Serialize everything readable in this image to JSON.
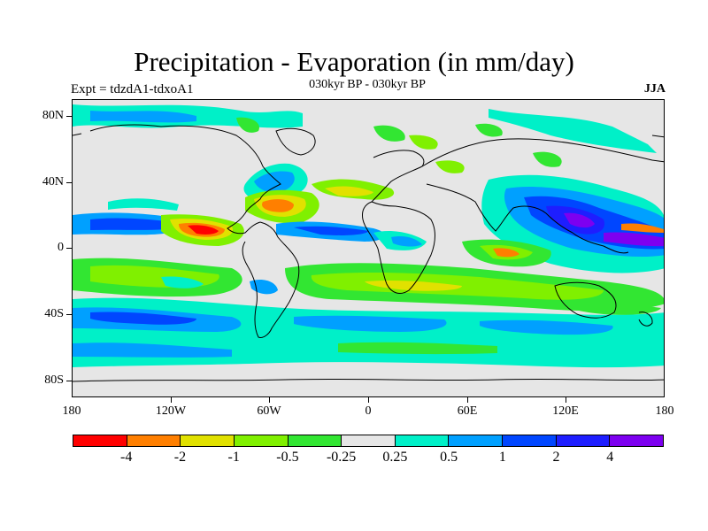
{
  "title": "Precipitation - Evaporation (in mm/day)",
  "subtitle": "030kyr BP - 030kyr BP",
  "experiment_label": "Expt = tdzdA1-tdxoA1",
  "season_label": "JJA",
  "lat_labels": [
    "80N",
    "40N",
    "0",
    "40S",
    "80S"
  ],
  "lon_labels": [
    "180",
    "120W",
    "60W",
    "0",
    "60E",
    "120E",
    "180"
  ],
  "colorbar": {
    "colors": [
      "#ff0000",
      "#ff7f00",
      "#e1e100",
      "#80f000",
      "#32e632",
      "#e6e6e6",
      "#00f0c8",
      "#00a0ff",
      "#0046ff",
      "#1e1eff",
      "#7d00f0"
    ],
    "labels": [
      "-4",
      "-2",
      "-1",
      "-0.5",
      "-0.25",
      "0.25",
      "0.5",
      "1",
      "2",
      "4"
    ]
  },
  "palette": {
    "red": "#ff0000",
    "orange": "#ff7f00",
    "yellow": "#e1e100",
    "lime": "#80f000",
    "green": "#32e632",
    "gray": "#e6e6e6",
    "cyan": "#00f0c8",
    "sky": "#00a0ff",
    "blue": "#0046ff",
    "deepblue": "#1e1eff",
    "violet": "#7d00f0"
  }
}
